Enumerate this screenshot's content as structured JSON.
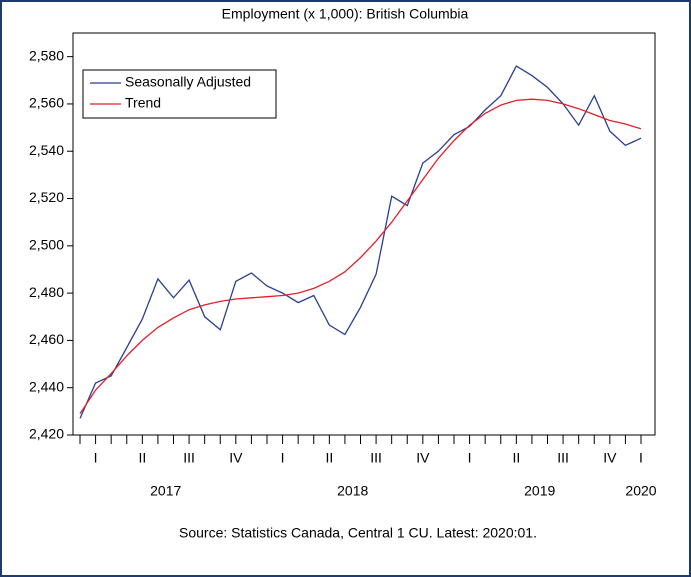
{
  "chart_data": {
    "type": "line",
    "title": "Employment (x 1,000): British Columbia",
    "source": "Source:  Statistics Canada, Central 1 CU. Latest: 2020:01.",
    "categories": [
      null,
      "I",
      null,
      null,
      "II",
      null,
      null,
      "III",
      null,
      null,
      "IV",
      null,
      null,
      "I",
      null,
      null,
      "II",
      null,
      null,
      "III",
      null,
      null,
      "IV",
      null,
      null,
      "I",
      null,
      null,
      "II",
      null,
      null,
      "III",
      null,
      null,
      "IV",
      null,
      "I"
    ],
    "years": [
      "2017",
      "2018",
      "2019",
      "2020"
    ],
    "series": [
      {
        "name": "Seasonally Adjusted",
        "color": "#2a3f8f",
        "values": [
          2427,
          2442,
          2445,
          2457,
          2469,
          2486,
          2478,
          2485.5,
          2470,
          2464.5,
          2485,
          2488.5,
          2483,
          2480,
          2476,
          2479,
          2466.5,
          2462.5,
          2474,
          2488,
          2521,
          2517,
          2535,
          2540,
          2547,
          2550.5,
          2557.5,
          2563.5,
          2576,
          2572,
          2567,
          2560,
          2551,
          2563.5,
          2548.5,
          2542.5,
          2545.5
        ]
      },
      {
        "name": "Trend",
        "color": "#e0202a",
        "values": [
          2429,
          2439,
          2446,
          2453.5,
          2460,
          2465.5,
          2469.5,
          2473,
          2475,
          2476.5,
          2477.5,
          2478,
          2478.5,
          2479,
          2480,
          2482,
          2485,
          2489,
          2495,
          2502,
          2510,
          2519,
          2528,
          2537,
          2544.5,
          2551,
          2556,
          2559.5,
          2561.5,
          2562,
          2561.5,
          2560,
          2558,
          2555.5,
          2553,
          2551.5,
          2549.5
        ]
      }
    ],
    "ylim": [
      2420,
      2590
    ],
    "yticks": [
      {
        "value": 2420,
        "label": "2,420"
      },
      {
        "value": 2440,
        "label": "2,440"
      },
      {
        "value": 2460,
        "label": "2,460"
      },
      {
        "value": 2480,
        "label": "2,480"
      },
      {
        "value": 2500,
        "label": "2,500"
      },
      {
        "value": 2520,
        "label": "2,520"
      },
      {
        "value": 2540,
        "label": "2,540"
      },
      {
        "value": 2560,
        "label": "2,560"
      },
      {
        "value": 2580,
        "label": "2,580"
      }
    ],
    "legend": "upper left"
  }
}
